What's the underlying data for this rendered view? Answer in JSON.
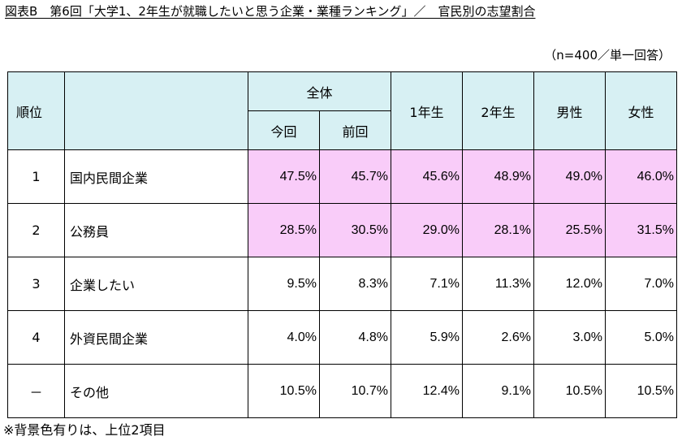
{
  "title": "図表B　第6回「大学1、2年生が就職したいと思う企業・業種ランキング」／　官民別の志望割合",
  "sample_note": "（n=400／単一回答）",
  "header": {
    "rank": "順位",
    "overall": "全体",
    "current": "今回",
    "previous": "前回",
    "year1": "1年生",
    "year2": "2年生",
    "male": "男性",
    "female": "女性"
  },
  "rows": [
    {
      "rank": "1",
      "name": "国内民間企業",
      "values": [
        "47.5%",
        "45.7%",
        "45.6%",
        "48.9%",
        "49.0%",
        "46.0%"
      ]
    },
    {
      "rank": "2",
      "name": "公務員",
      "values": [
        "28.5%",
        "30.5%",
        "29.0%",
        "28.1%",
        "25.5%",
        "31.5%"
      ]
    },
    {
      "rank": "3",
      "name": "企業したい",
      "values": [
        "9.5%",
        "8.3%",
        "7.1%",
        "11.3%",
        "12.0%",
        "7.0%"
      ]
    },
    {
      "rank": "4",
      "name": "外資民間企業",
      "values": [
        "4.0%",
        "4.8%",
        "5.9%",
        "2.6%",
        "3.0%",
        "5.0%"
      ]
    },
    {
      "rank": "－",
      "name": "その他",
      "values": [
        "10.5%",
        "10.7%",
        "12.4%",
        "9.1%",
        "10.5%",
        "10.5%"
      ]
    }
  ],
  "highlight_color": "#f9ccf9",
  "header_color": "#d7f0f3",
  "footnote": "※背景色有りは、上位2項目"
}
